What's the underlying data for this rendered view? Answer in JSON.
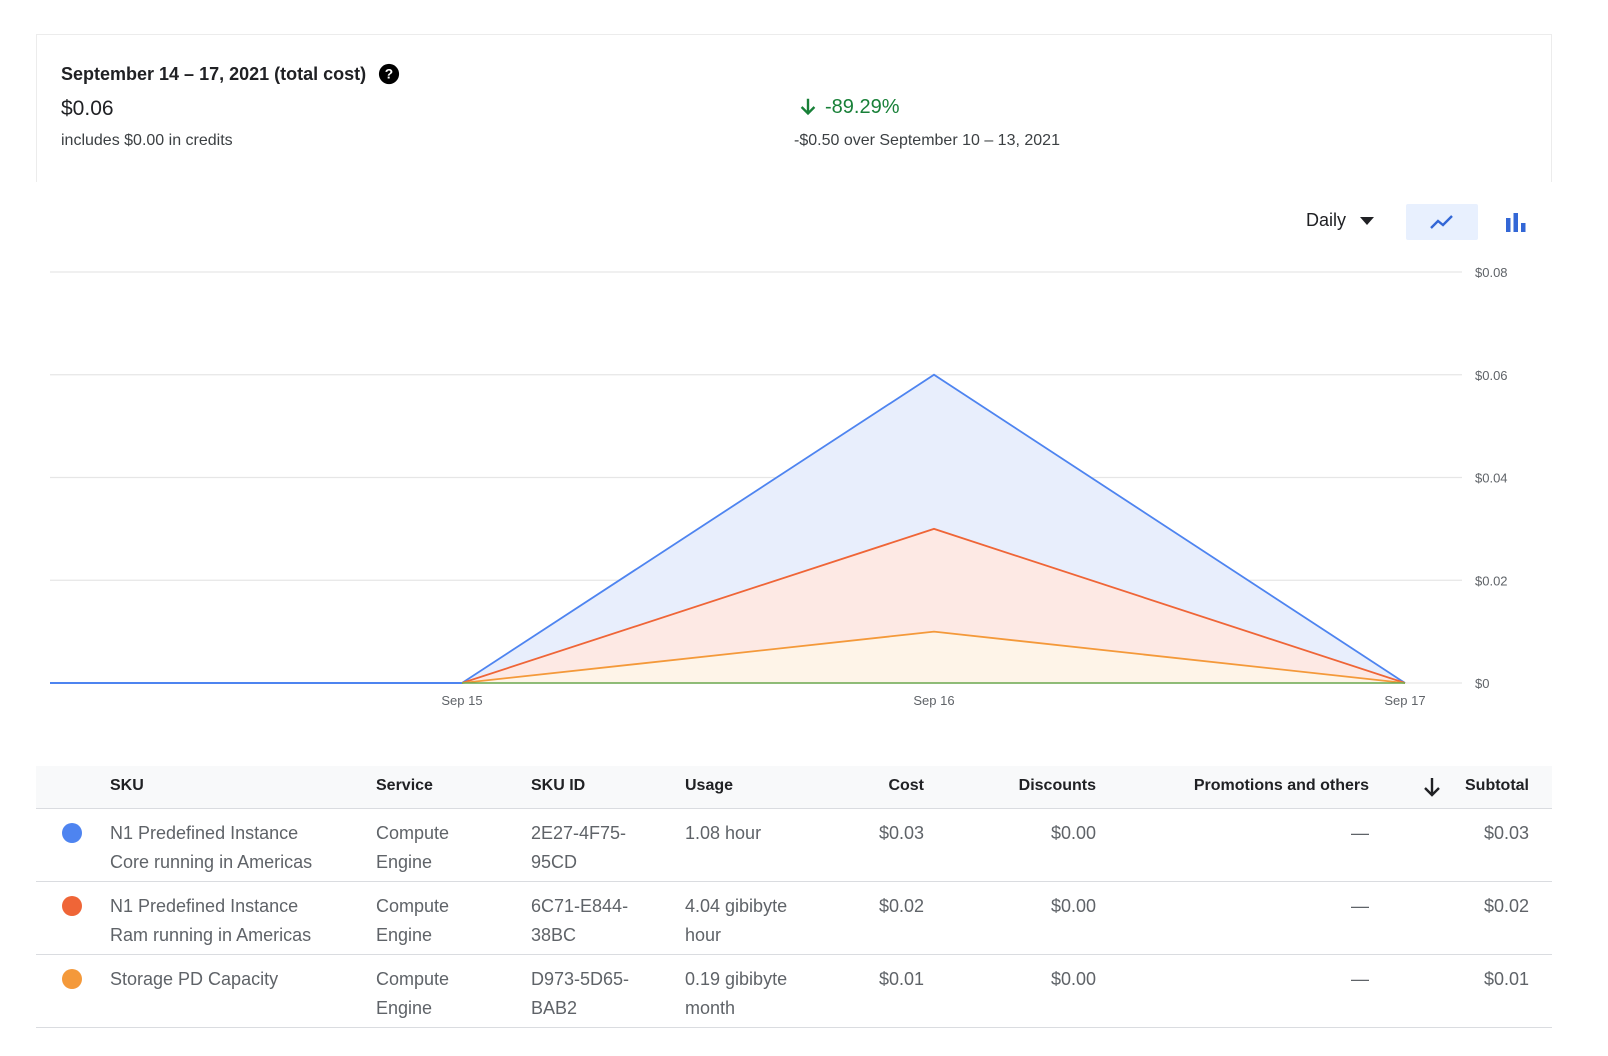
{
  "summary": {
    "title": "September 14 – 17, 2021 (total cost)",
    "total": "$0.06",
    "credits": "includes $0.00 in credits",
    "change_pct": "-89.29%",
    "compare_text": "-$0.50 over September 10 – 13, 2021",
    "change_color": "#188038"
  },
  "controls": {
    "granularity": "Daily",
    "line_icon": "line-chart-icon",
    "bar_icon": "bar-chart-icon",
    "active_view": "line"
  },
  "chart_data": {
    "type": "area",
    "x": [
      "Sep 14",
      "Sep 15",
      "Sep 16",
      "Sep 17"
    ],
    "x_tick_labels": [
      "Sep 15",
      "Sep 16",
      "Sep 17"
    ],
    "y_tick_labels": [
      "$0.08",
      "$0.06",
      "$0.04",
      "$0.02",
      "$0"
    ],
    "ylim": [
      0,
      0.08
    ],
    "grid": true,
    "stacked": true,
    "series": [
      {
        "name": "N1 Predefined Instance Core running in Americas",
        "values": [
          0,
          0,
          0.03,
          0
        ],
        "color": "#4e84f0"
      },
      {
        "name": "N1 Predefined Instance Ram running in Americas",
        "values": [
          0,
          0,
          0.02,
          0
        ],
        "color": "#ef6537"
      },
      {
        "name": "Storage PD Capacity",
        "values": [
          0,
          0,
          0.01,
          0
        ],
        "color": "#f4993a"
      }
    ]
  },
  "table": {
    "headers": {
      "sku": "SKU",
      "service": "Service",
      "sku_id": "SKU ID",
      "usage": "Usage",
      "cost": "Cost",
      "discounts": "Discounts",
      "promotions": "Promotions and others",
      "subtotal": "Subtotal"
    },
    "rows": [
      {
        "color": "#4e84f0",
        "sku1": "N1 Predefined Instance",
        "sku2": "Core running in Americas",
        "service1": "Compute",
        "service2": "Engine",
        "id1": "2E27-4F75-",
        "id2": "95CD",
        "usage1": "1.08 hour",
        "usage2": "",
        "cost": "$0.03",
        "discounts": "$0.00",
        "promotions": "—",
        "subtotal": "$0.03"
      },
      {
        "color": "#ef6537",
        "sku1": "N1 Predefined Instance",
        "sku2": "Ram running in Americas",
        "service1": "Compute",
        "service2": "Engine",
        "id1": "6C71-E844-",
        "id2": "38BC",
        "usage1": "4.04 gibibyte",
        "usage2": "hour",
        "cost": "$0.02",
        "discounts": "$0.00",
        "promotions": "—",
        "subtotal": "$0.02"
      },
      {
        "color": "#f4993a",
        "sku1": "Storage PD Capacity",
        "sku2": "",
        "service1": "Compute",
        "service2": "Engine",
        "id1": "D973-5D65-",
        "id2": "BAB2",
        "usage1": "0.19 gibibyte",
        "usage2": "month",
        "cost": "$0.01",
        "discounts": "$0.00",
        "promotions": "—",
        "subtotal": "$0.01"
      }
    ]
  }
}
